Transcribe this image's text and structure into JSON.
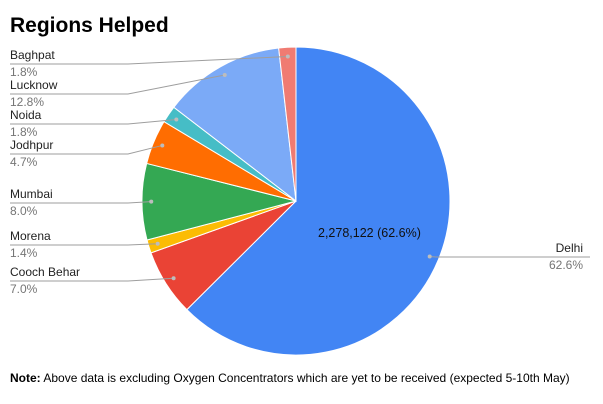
{
  "chart_data": {
    "type": "pie",
    "title": "Regions Helped",
    "slices": [
      {
        "label": "Delhi",
        "percent": 62.6,
        "percent_text": "62.6%",
        "color": "#4285f4"
      },
      {
        "label": "Cooch Behar",
        "percent": 7.0,
        "percent_text": "7.0%",
        "color": "#ea4335"
      },
      {
        "label": "Morena",
        "percent": 1.4,
        "percent_text": "1.4%",
        "color": "#fbbc04"
      },
      {
        "label": "Mumbai",
        "percent": 8.0,
        "percent_text": "8.0%",
        "color": "#34a853"
      },
      {
        "label": "Jodhpur",
        "percent": 4.7,
        "percent_text": "4.7%",
        "color": "#ff6d01"
      },
      {
        "label": "Noida",
        "percent": 1.8,
        "percent_text": "1.8%",
        "color": "#46bdc6"
      },
      {
        "label": "Lucknow",
        "percent": 12.8,
        "percent_text": "12.8%",
        "color": "#7baaf7"
      },
      {
        "label": "Baghpat",
        "percent": 1.8,
        "percent_text": "1.8%",
        "color": "#f07b72"
      }
    ],
    "slice_label": "2,278,122 (62.6%)",
    "legend": "leader-lines"
  },
  "note": {
    "prefix": "Note:",
    "text": " Above data is excluding Oxygen Concentrators which are yet to be received (expected 5-10th May)"
  }
}
